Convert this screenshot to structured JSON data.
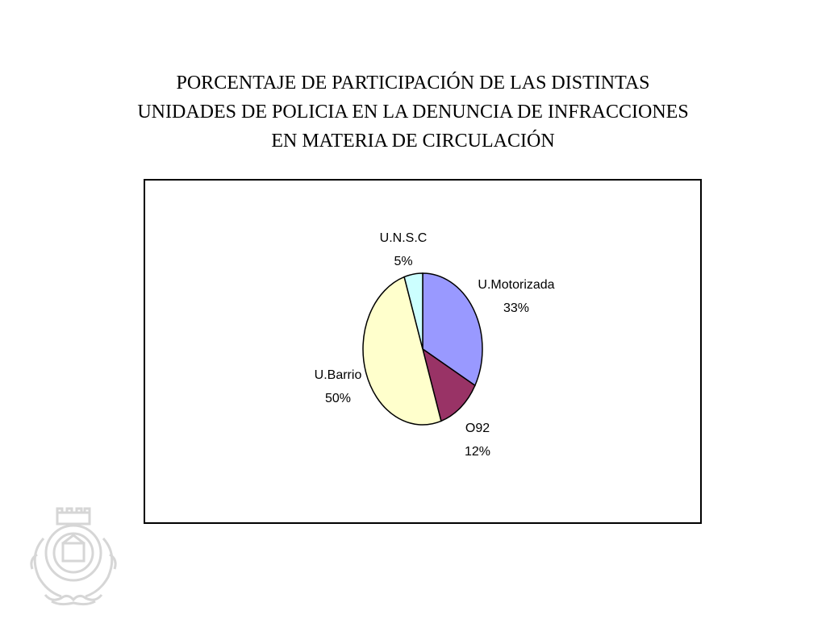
{
  "title_lines": [
    "PORCENTAJE DE PARTICIPACIÓN DE LAS DISTINTAS",
    "UNIDADES DE POLICIA EN LA DENUNCIA DE INFRACCIONES",
    "EN MATERIA DE CIRCULACIÓN"
  ],
  "chart_data": {
    "type": "pie",
    "title": "PORCENTAJE DE PARTICIPACIÓN DE LAS DISTINTAS UNIDADES DE POLICIA EN LA DENUNCIA DE INFRACCIONES EN MATERIA DE CIRCULACIÓN",
    "start_angle_deg": 0,
    "direction": "clockwise",
    "slices": [
      {
        "name": "U.Motorizada",
        "value": 33,
        "label": "33%",
        "color": "#9999ff"
      },
      {
        "name": "O92",
        "value": 12,
        "label": "12%",
        "color": "#993366"
      },
      {
        "name": "U.Barrio",
        "value": 50,
        "label": "50%",
        "color": "#ffffcc"
      },
      {
        "name": "U.N.S.C",
        "value": 5,
        "label": "5%",
        "color": "#ccffff"
      }
    ],
    "legend": "none",
    "data_labels": "category-and-percent-outside"
  },
  "emblem": {
    "icon": "municipal-crest-watermark-icon",
    "color": "#d9d9d9"
  }
}
